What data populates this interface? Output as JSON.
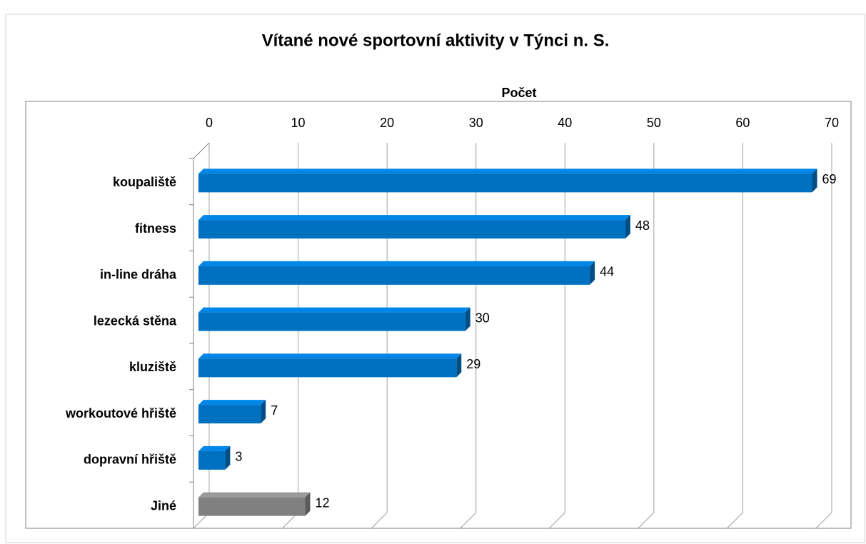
{
  "chart_data": {
    "type": "bar",
    "orientation": "horizontal",
    "title": "Vítané nové sportovní aktivity v Týnci n. S.",
    "x_label": "Počet",
    "categories": [
      "koupaliště",
      "fitness",
      "in-line dráha",
      "lezecká stěna",
      "kluziště",
      "workoutové hřiště",
      "dopravní hřiště",
      "Jiné"
    ],
    "values": [
      69,
      48,
      44,
      30,
      29,
      7,
      3,
      12
    ],
    "colors": [
      "#0070c0",
      "#0070c0",
      "#0070c0",
      "#0070c0",
      "#0070c0",
      "#0070c0",
      "#0070c0",
      "#808080"
    ],
    "xlim": [
      0,
      70
    ],
    "xticks": [
      0,
      10,
      20,
      30,
      40,
      50,
      60,
      70
    ],
    "grid": true
  }
}
